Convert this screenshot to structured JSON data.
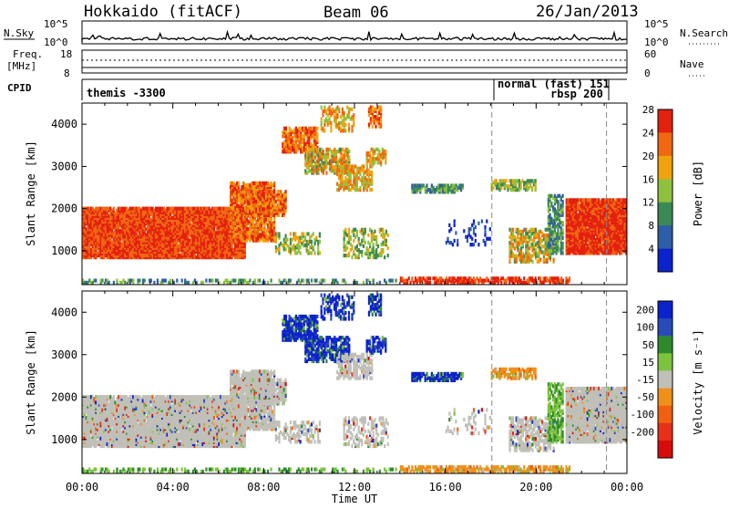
{
  "header": {
    "radar": "Hokkaido (fitACF)",
    "beam": "Beam 06",
    "date": "26/Jan/2013"
  },
  "strip_labels": {
    "nsky": "N.Sky",
    "nsearch": "N.Search",
    "freq": "Freq.",
    "mhz": "[MHz]",
    "nave": "Nave",
    "cpid": "CPID",
    "count_hi": "10^5",
    "count_lo": "10^0",
    "freq_hi": "18",
    "freq_lo": "8",
    "nave_hi": "60",
    "nave_lo": "0"
  },
  "cpid_labels": {
    "themis": "themis -3300",
    "normal": "normal (fast) 151",
    "rbsp": "rbsp 200"
  },
  "colors": {
    "power": [
      "#0c22cc",
      "#2f5ea8",
      "#3b8a55",
      "#8ec13c",
      "#f0a30e",
      "#f06812",
      "#e4200e"
    ],
    "velocity": [
      "#0c22cc",
      "#2a4ab8",
      "#2d8a2d",
      "#7dc33d",
      "#c0c0b8",
      "#f09018",
      "#f06010",
      "#e8301a",
      "#d80c0c"
    ],
    "ground": "#c0c0b8"
  },
  "chart_data": [
    {
      "type": "heatmap",
      "panel": "power",
      "xlabel": "",
      "ylabel": "Slant Range [km]",
      "xlim": [
        0,
        24
      ],
      "ylim": [
        200,
        4500
      ],
      "y_ticks": [
        "1000",
        "2000",
        "3000",
        "4000"
      ],
      "colorbar": {
        "label": "Power [dB]",
        "ticks": [
          "4",
          "8",
          "12",
          "16",
          "20",
          "24",
          "28"
        ],
        "range": [
          0,
          30
        ]
      }
    },
    {
      "type": "heatmap",
      "panel": "velocity",
      "xlabel": "Time UT",
      "ylabel": "Slant Range [km]",
      "xlim": [
        0,
        24
      ],
      "ylim": [
        200,
        4500
      ],
      "x_ticks": [
        "00:00",
        "04:00",
        "08:00",
        "12:00",
        "16:00",
        "20:00",
        "00:00"
      ],
      "y_ticks": [
        "1000",
        "2000",
        "3000",
        "4000"
      ],
      "colorbar": {
        "label": "Velocity [m s⁻¹]",
        "ticks": [
          "200",
          "100",
          "50",
          "15",
          "-15",
          "-50",
          "-100",
          "-200"
        ]
      }
    }
  ]
}
